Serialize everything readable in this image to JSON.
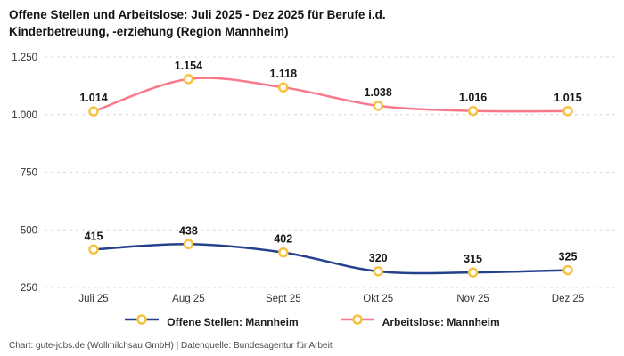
{
  "header": {
    "title_line1": "Offene Stellen und Arbeitslose: Juli 2025 - Dez 2025 für Berufe i.d.",
    "title_line2": "Kinderbetreuung, -erziehung (Region Mannheim)"
  },
  "chart_data": {
    "type": "line",
    "categories": [
      "Juli 25",
      "Aug 25",
      "Sept 25",
      "Okt 25",
      "Nov 25",
      "Dez 25"
    ],
    "series": [
      {
        "name": "Offene Stellen: Mannheim",
        "values": [
          415,
          438,
          402,
          320,
          315,
          325
        ],
        "labels": [
          "415",
          "438",
          "402",
          "320",
          "315",
          "325"
        ],
        "color": "#24418e"
      },
      {
        "name": "Arbeitslose: Mannheim",
        "values": [
          1014,
          1154,
          1118,
          1038,
          1016,
          1015
        ],
        "labels": [
          "1.014",
          "1.154",
          "1.118",
          "1.038",
          "1.016",
          "1.015"
        ],
        "color": "#f8798c"
      }
    ],
    "marker": {
      "fill": "#ffffff",
      "stroke": "#f5c242"
    },
    "yticks": [
      {
        "value": 250,
        "label": "250"
      },
      {
        "value": 500,
        "label": "500"
      },
      {
        "value": 750,
        "label": "750"
      },
      {
        "value": 1000,
        "label": "1.000"
      },
      {
        "value": 1250,
        "label": "1.250"
      }
    ],
    "ylim": [
      200,
      1300
    ],
    "grid": "horizontal-dashed",
    "grid_color": "#d8d8d8",
    "axis_text_color": "#333333",
    "label_text_color": "#161616",
    "legend_position": "bottom"
  },
  "footer": {
    "credit": "Chart: gute-jobs.de (Wollmilchsau GmbH) | Datenquelle: Bundesagentur für Arbeit"
  }
}
